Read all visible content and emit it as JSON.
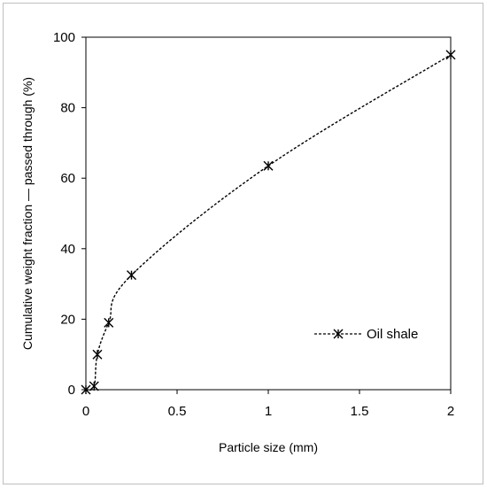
{
  "chart_data": {
    "type": "scatter",
    "xlabel": "Particle size (mm)",
    "ylabel": "Cumulative weight fraction — passed through (%)",
    "xlim": [
      0,
      2
    ],
    "ylim": [
      0,
      100
    ],
    "xticks": [
      0,
      0.5,
      1,
      1.5,
      2
    ],
    "xtick_labels": [
      "0",
      "0.5",
      "1",
      "1.5",
      "2"
    ],
    "yticks": [
      0,
      20,
      40,
      60,
      80,
      100
    ],
    "ytick_labels": [
      "0",
      "20",
      "40",
      "60",
      "80",
      "100"
    ],
    "grid": false,
    "legend_position": "right-middle",
    "series": [
      {
        "name": "Oil shale",
        "marker": "asterisk",
        "line": "dashed-smooth",
        "color": "#000000",
        "x": [
          0,
          0.045,
          0.063,
          0.125,
          0.25,
          1,
          2
        ],
        "y": [
          0,
          1,
          10,
          19,
          32.5,
          63.5,
          95
        ]
      }
    ]
  }
}
